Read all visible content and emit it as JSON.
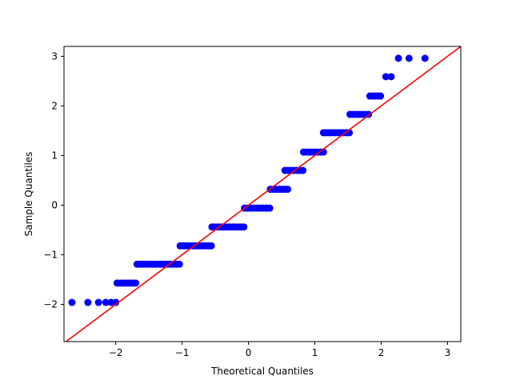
{
  "chart_data": {
    "type": "scatter",
    "title": "",
    "xlabel": "Theoretical Quantiles",
    "ylabel": "Sample Quantiles",
    "xlim": [
      -2.78,
      3.2
    ],
    "ylim": [
      -2.75,
      3.2
    ],
    "x_ticks": [
      -2,
      -1,
      0,
      1,
      2,
      3
    ],
    "y_ticks": [
      -2,
      -1,
      0,
      1,
      2,
      3
    ],
    "x_tick_labels": [
      "−2",
      "−1",
      "0",
      "1",
      "2",
      "3"
    ],
    "y_tick_labels": [
      "−2",
      "−1",
      "0",
      "1",
      "2",
      "3"
    ],
    "grid": false,
    "reference_line": {
      "slope": 1,
      "intercept": 0,
      "color": "#ff0000"
    },
    "point_color": "#0000ff",
    "steps": [
      {
        "y": -1.96,
        "x_from": -2.66,
        "x_to": -2.0,
        "xs": [
          -2.66,
          -2.42,
          -2.26,
          -2.15,
          -2.07,
          -2.0
        ]
      },
      {
        "y": -1.57,
        "x_from": -1.98,
        "x_to": -1.7
      },
      {
        "y": -1.19,
        "x_from": -1.68,
        "x_to": -1.04
      },
      {
        "y": -0.82,
        "x_from": -1.03,
        "x_to": -0.56
      },
      {
        "y": -0.44,
        "x_from": -0.55,
        "x_to": -0.07
      },
      {
        "y": -0.06,
        "x_from": -0.06,
        "x_to": 0.32
      },
      {
        "y": 0.32,
        "x_from": 0.33,
        "x_to": 0.59
      },
      {
        "y": 0.7,
        "x_from": 0.55,
        "x_to": 0.82
      },
      {
        "y": 1.07,
        "x_from": 0.83,
        "x_to": 1.13
      },
      {
        "y": 1.46,
        "x_from": 1.13,
        "x_to": 1.52
      },
      {
        "y": 1.83,
        "x_from": 1.53,
        "x_to": 1.81
      },
      {
        "y": 2.2,
        "x_from": 1.83,
        "x_to": 1.99
      },
      {
        "y": 2.59,
        "x_from": 2.07,
        "x_to": 2.15,
        "xs": [
          2.07,
          2.15
        ]
      },
      {
        "y": 2.96,
        "x_from": 2.26,
        "x_to": 2.66,
        "xs": [
          2.26,
          2.42,
          2.66
        ]
      }
    ]
  }
}
